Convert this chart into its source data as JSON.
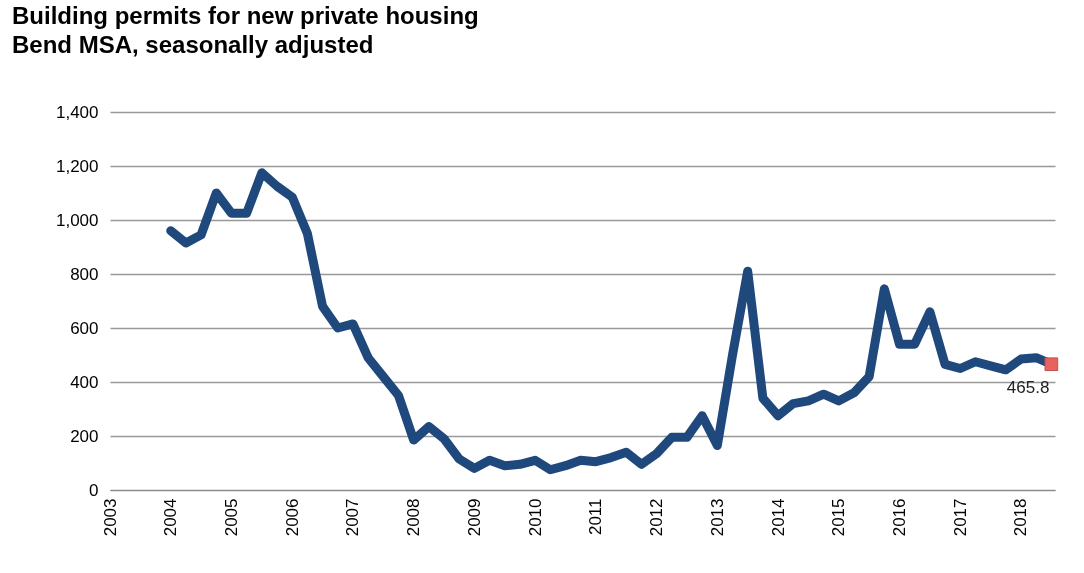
{
  "chart_data": {
    "type": "line",
    "title": "Building permits for new private housing\nBend MSA, seasonally adjusted",
    "x": [
      2004,
      2004.25,
      2004.5,
      2004.75,
      2005,
      2005.25,
      2005.5,
      2005.75,
      2006,
      2006.25,
      2006.5,
      2006.75,
      2007,
      2007.25,
      2007.5,
      2007.75,
      2008,
      2008.25,
      2008.5,
      2008.75,
      2009,
      2009.25,
      2009.5,
      2009.75,
      2010,
      2010.25,
      2010.5,
      2010.75,
      2011,
      2011.25,
      2011.5,
      2011.75,
      2012,
      2012.25,
      2012.5,
      2012.75,
      2013,
      2013.25,
      2013.5,
      2013.75,
      2014,
      2014.25,
      2014.5,
      2014.75,
      2015,
      2015.25,
      2015.5,
      2015.75,
      2016,
      2016.25,
      2016.5,
      2016.75,
      2017,
      2017.25,
      2017.5,
      2017.75,
      2018,
      2018.25,
      2018.5
    ],
    "series": [
      {
        "color": "#1f497d",
        "values": [
          960,
          915,
          945,
          1100,
          1025,
          1025,
          1175,
          1125,
          1085,
          950,
          680,
          600,
          615,
          490,
          420,
          350,
          185,
          235,
          190,
          115,
          80,
          110,
          90,
          95,
          110,
          75,
          90,
          110,
          105,
          120,
          140,
          95,
          135,
          195,
          195,
          275,
          165,
          500,
          810,
          340,
          275,
          320,
          330,
          355,
          330,
          360,
          420,
          745,
          540,
          540,
          660,
          465,
          450,
          475,
          460,
          445,
          485,
          490,
          466
        ]
      },
      {
        "type": "scatter",
        "marker": "square",
        "color": "#e8625f",
        "x": [
          2018.5
        ],
        "values": [
          465.8
        ],
        "value_labels": [
          "465.8"
        ]
      }
    ],
    "xlim": [
      2003,
      2018.56
    ],
    "xticks": [
      2003,
      2004,
      2005,
      2006,
      2007,
      2008,
      2009,
      2010,
      2011,
      2012,
      2013,
      2014,
      2015,
      2016,
      2017,
      2018
    ],
    "ylim": [
      0,
      1400
    ],
    "yticks": [
      0,
      200,
      400,
      600,
      800,
      {
        "value": 1000,
        "label": "1,000"
      },
      {
        "value": 1200,
        "label": "1,200"
      },
      {
        "value": 1400,
        "label": "1,400"
      }
    ],
    "grid": "y"
  }
}
